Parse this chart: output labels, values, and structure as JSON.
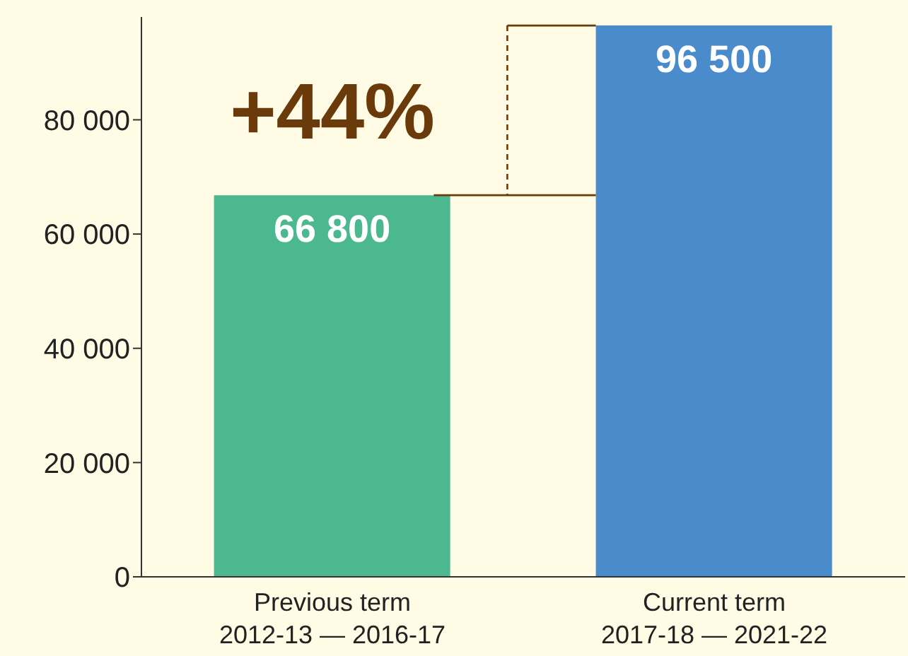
{
  "chart_data": {
    "type": "bar",
    "categories": [
      "Previous term\n2012-13 — 2016-17",
      "Current term\n2017-18 — 2021-22"
    ],
    "values": [
      66800,
      96500
    ],
    "colors": [
      "#4bb88f",
      "#4a8bcb"
    ],
    "value_labels": [
      "66 800",
      "96 500"
    ],
    "ylim": [
      0,
      98000
    ],
    "yticks": [
      {
        "value": 0,
        "label": "0"
      },
      {
        "value": 20000,
        "label": "20 000"
      },
      {
        "value": 40000,
        "label": "40 000"
      },
      {
        "value": 60000,
        "label": "60 000"
      },
      {
        "value": 80000,
        "label": "80 000"
      }
    ],
    "annotations": [
      {
        "text": "+44%",
        "x": "Previous term\n2012-13 — 2016-17",
        "y": 66800
      }
    ],
    "grid": false,
    "legend": false
  }
}
